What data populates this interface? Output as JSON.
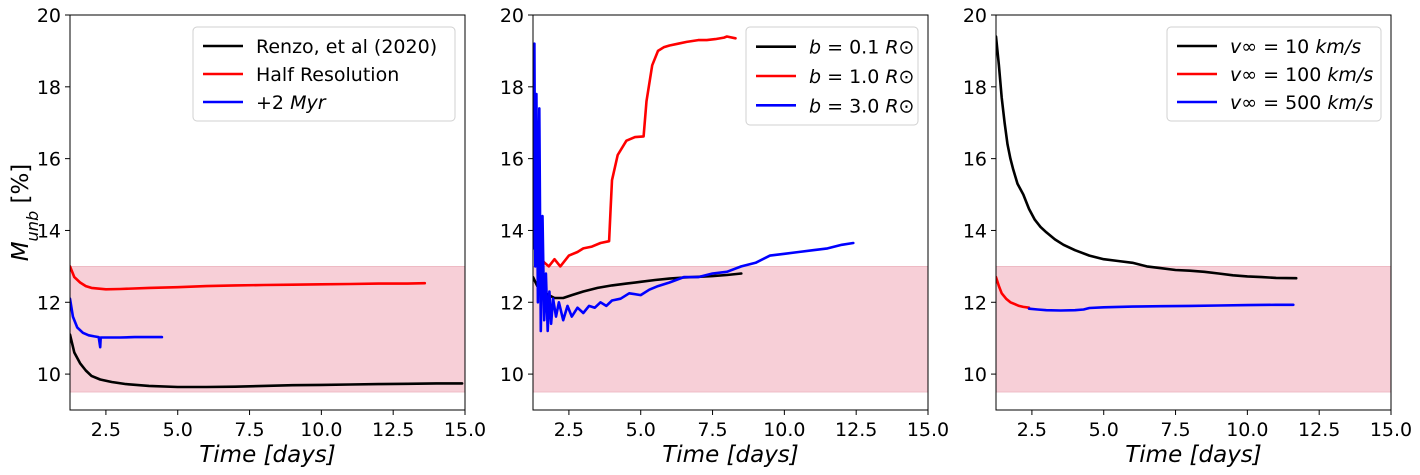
{
  "figure": {
    "shared_ylabel": "M_unb [%]",
    "band_color": "#f7cfd7"
  },
  "chart_data": [
    {
      "type": "line",
      "title": "",
      "xlabel": "Time [days]",
      "ylabel": "M_unb [%]",
      "xlim": [
        1.25,
        15.0
      ],
      "ylim": [
        9.0,
        20.0
      ],
      "xticks": [
        "2.5",
        "5.0",
        "7.5",
        "10.0",
        "12.5",
        "15.0"
      ],
      "yticks": [
        "10",
        "12",
        "14",
        "16",
        "18",
        "20"
      ],
      "shaded_band": [
        9.5,
        13.0
      ],
      "grid": false,
      "legend_position": "top-right",
      "series": [
        {
          "name": "Renzo, et al (2020)",
          "color": "#000000",
          "x": [
            1.25,
            1.4,
            1.6,
            1.8,
            2.0,
            2.3,
            2.7,
            3.2,
            4.0,
            5.0,
            6.0,
            7.0,
            8.0,
            9.0,
            10.0,
            11.0,
            12.0,
            13.0,
            14.0,
            14.9
          ],
          "y": [
            11.1,
            10.6,
            10.3,
            10.1,
            9.95,
            9.85,
            9.78,
            9.72,
            9.67,
            9.64,
            9.64,
            9.65,
            9.67,
            9.69,
            9.7,
            9.71,
            9.72,
            9.73,
            9.74,
            9.74
          ]
        },
        {
          "name": "Half Resolution",
          "color": "#ff0000",
          "x": [
            1.25,
            1.4,
            1.6,
            1.8,
            2.0,
            2.5,
            3.0,
            4.0,
            5.0,
            6.0,
            7.0,
            8.0,
            9.0,
            10.0,
            11.0,
            12.0,
            13.0,
            13.6
          ],
          "y": [
            13.0,
            12.7,
            12.55,
            12.45,
            12.4,
            12.36,
            12.37,
            12.4,
            12.42,
            12.45,
            12.47,
            12.48,
            12.49,
            12.5,
            12.51,
            12.52,
            12.52,
            12.53
          ]
        },
        {
          "name": "+2 Myr",
          "color": "#0000ff",
          "x": [
            1.25,
            1.35,
            1.5,
            1.7,
            1.9,
            2.1,
            2.25,
            2.3,
            2.32,
            2.35,
            2.5,
            3.0,
            3.5,
            4.0,
            4.45
          ],
          "y": [
            12.1,
            11.6,
            11.3,
            11.15,
            11.08,
            11.05,
            11.03,
            10.75,
            11.02,
            11.02,
            11.02,
            11.02,
            11.03,
            11.03,
            11.03
          ]
        }
      ]
    },
    {
      "type": "line",
      "title": "",
      "xlabel": "Time [days]",
      "ylabel": "",
      "xlim": [
        1.25,
        15.0
      ],
      "ylim": [
        9.0,
        20.0
      ],
      "xticks": [
        "2.5",
        "5.0",
        "7.5",
        "10.0",
        "12.5",
        "15.0"
      ],
      "yticks": [
        "10",
        "12",
        "14",
        "16",
        "18",
        "20"
      ],
      "shaded_band": [
        9.5,
        13.0
      ],
      "grid": false,
      "legend_position": "top-right",
      "series": [
        {
          "name": "b = 0.1 R⊙",
          "color": "#000000",
          "x": [
            1.25,
            1.4,
            1.6,
            1.8,
            2.0,
            2.3,
            2.6,
            3.0,
            3.5,
            4.0,
            4.5,
            5.0,
            5.5,
            6.0,
            6.5,
            7.0,
            7.5,
            8.0,
            8.5
          ],
          "y": [
            12.7,
            12.45,
            12.3,
            12.2,
            12.12,
            12.12,
            12.2,
            12.3,
            12.4,
            12.47,
            12.52,
            12.57,
            12.62,
            12.66,
            12.69,
            12.71,
            12.73,
            12.76,
            12.8
          ]
        },
        {
          "name": "b = 1.0 R⊙",
          "color": "#ff0000",
          "x": [
            1.25,
            1.35,
            1.45,
            1.55,
            1.65,
            1.8,
            2.0,
            2.2,
            2.5,
            2.8,
            3.0,
            3.3,
            3.6,
            3.9,
            3.95,
            4.0,
            4.2,
            4.5,
            4.8,
            5.1,
            5.2,
            5.4,
            5.6,
            5.8,
            6.0,
            6.3,
            6.6,
            7.0,
            7.3,
            7.6,
            7.9,
            8.0,
            8.3
          ],
          "y": [
            14.0,
            13.6,
            13.3,
            13.2,
            13.1,
            13.0,
            13.2,
            13.0,
            13.3,
            13.4,
            13.5,
            13.55,
            13.65,
            13.7,
            14.6,
            15.4,
            16.1,
            16.5,
            16.6,
            16.62,
            17.6,
            18.6,
            19.0,
            19.1,
            19.15,
            19.2,
            19.25,
            19.3,
            19.3,
            19.33,
            19.37,
            19.4,
            19.35
          ]
        },
        {
          "name": "b = 3.0 R⊙",
          "color": "#0000ff",
          "x": [
            1.25,
            1.3,
            1.33,
            1.37,
            1.42,
            1.47,
            1.52,
            1.58,
            1.64,
            1.7,
            1.76,
            1.82,
            1.88,
            1.95,
            2.05,
            2.15,
            2.3,
            2.45,
            2.6,
            2.8,
            3.0,
            3.2,
            3.4,
            3.6,
            3.8,
            4.0,
            4.3,
            4.6,
            5.0,
            5.3,
            5.6,
            6.0,
            6.5,
            7.0,
            7.5,
            8.0,
            8.5,
            9.0,
            9.5,
            10.0,
            10.5,
            11.0,
            11.5,
            12.0,
            12.4
          ],
          "y": [
            13.5,
            19.2,
            13.0,
            17.8,
            12.0,
            17.4,
            11.2,
            14.4,
            11.5,
            12.8,
            11.2,
            12.3,
            11.4,
            12.1,
            11.6,
            12.0,
            11.5,
            11.9,
            11.6,
            11.85,
            11.7,
            11.9,
            11.85,
            12.0,
            11.9,
            12.05,
            12.1,
            12.25,
            12.2,
            12.35,
            12.45,
            12.55,
            12.7,
            12.7,
            12.8,
            12.85,
            13.0,
            13.1,
            13.3,
            13.35,
            13.4,
            13.45,
            13.5,
            13.6,
            13.65
          ]
        }
      ]
    },
    {
      "type": "line",
      "title": "",
      "xlabel": "Time [days]",
      "ylabel": "",
      "xlim": [
        1.25,
        15.0
      ],
      "ylim": [
        9.0,
        20.0
      ],
      "xticks": [
        "2.5",
        "5.0",
        "7.5",
        "10.0",
        "12.5",
        "15.0"
      ],
      "yticks": [
        "10",
        "12",
        "14",
        "16",
        "18",
        "20"
      ],
      "shaded_band": [
        9.5,
        13.0
      ],
      "grid": false,
      "legend_position": "top-right",
      "series": [
        {
          "name": "v∞ = 10 km/s",
          "color": "#000000",
          "x": [
            1.25,
            1.35,
            1.45,
            1.55,
            1.65,
            1.75,
            1.85,
            2.0,
            2.2,
            2.4,
            2.6,
            2.8,
            3.0,
            3.3,
            3.6,
            4.0,
            4.5,
            5.0,
            5.5,
            6.0,
            6.5,
            7.0,
            7.5,
            8.0,
            8.5,
            9.0,
            9.5,
            10.0,
            10.5,
            11.0,
            11.7
          ],
          "y": [
            19.4,
            18.6,
            17.7,
            17.0,
            16.4,
            16.0,
            15.7,
            15.3,
            15.0,
            14.6,
            14.3,
            14.1,
            13.95,
            13.75,
            13.6,
            13.45,
            13.3,
            13.2,
            13.15,
            13.1,
            13.0,
            12.95,
            12.9,
            12.88,
            12.85,
            12.8,
            12.75,
            12.72,
            12.7,
            12.68,
            12.67
          ]
        },
        {
          "name": "v∞ = 100 km/s",
          "color": "#ff0000",
          "x": [
            1.25,
            1.35,
            1.45,
            1.6,
            1.75,
            1.9,
            2.05,
            2.2,
            2.4
          ],
          "y": [
            12.7,
            12.45,
            12.25,
            12.1,
            12.0,
            11.95,
            11.9,
            11.87,
            11.85
          ]
        },
        {
          "name": "v∞ = 500 km/s",
          "color": "#0000ff",
          "x": [
            2.4,
            2.7,
            3.0,
            3.5,
            4.0,
            4.3,
            4.5,
            5.0,
            6.0,
            7.0,
            8.0,
            9.0,
            10.0,
            11.0,
            11.6
          ],
          "y": [
            11.82,
            11.8,
            11.78,
            11.77,
            11.78,
            11.8,
            11.84,
            11.86,
            11.88,
            11.89,
            11.9,
            11.91,
            11.92,
            11.93,
            11.93
          ]
        }
      ]
    }
  ]
}
